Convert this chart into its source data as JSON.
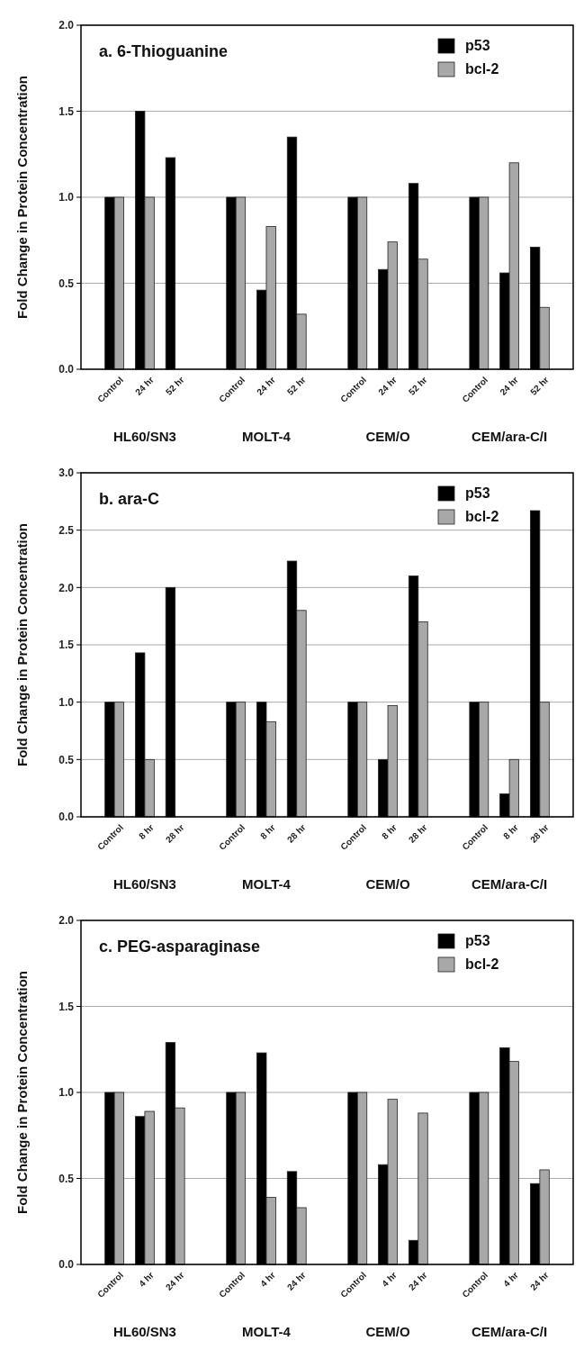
{
  "chart_data": [
    {
      "type": "bar",
      "title": "a. 6-Thioguanine",
      "ylabel": "Fold Change in Protein Concentration",
      "categories": [
        "Control",
        "24 hr",
        "52 hr",
        "Control",
        "24 hr",
        "52 hr",
        "Control",
        "24 hr",
        "52 hr",
        "Control",
        "24 hr",
        "52 hr"
      ],
      "annotations": [
        "HL60/SN3",
        "MOLT-4",
        "CEM/O",
        "CEM/ara-C/I"
      ],
      "series": [
        {
          "name": "p53",
          "color": "#000000",
          "values": [
            1,
            1.5,
            1.23,
            1,
            0.46,
            1.35,
            1,
            0.58,
            1.08,
            1,
            0.56,
            0.71
          ]
        },
        {
          "name": "bcl-2",
          "color": "#a8a8a8",
          "values": [
            1,
            1.0,
            null,
            1,
            0.83,
            0.32,
            1,
            0.74,
            0.64,
            1,
            1.2,
            0.36
          ]
        }
      ],
      "ylim": [
        0,
        2
      ],
      "yticks": [
        {
          "value": 0,
          "label": "0.0"
        },
        {
          "value": 0.5,
          "label": "0.5"
        },
        {
          "value": 1,
          "label": "1.0"
        },
        {
          "value": 1.5,
          "label": "1.5"
        },
        {
          "value": 2,
          "label": "2.0"
        }
      ],
      "grid": "y",
      "legend": "top right"
    },
    {
      "type": "bar",
      "title": "b. ara-C",
      "ylabel": "Fold Change in Protein Concentration",
      "categories": [
        "Control",
        "8 hr",
        "28 hr",
        "Control",
        "8 hr",
        "28 hr",
        "Control",
        "8 hr",
        "28 hr",
        "Control",
        "8 hr",
        "28 hr"
      ],
      "annotations": [
        "HL60/SN3",
        "MOLT-4",
        "CEM/O",
        "CEM/ara-C/I"
      ],
      "series": [
        {
          "name": "p53",
          "color": "#000000",
          "values": [
            1,
            1.43,
            2.0,
            1,
            1.0,
            2.23,
            1,
            0.5,
            2.1,
            1,
            0.2,
            2.67
          ]
        },
        {
          "name": "bcl-2",
          "color": "#a8a8a8",
          "values": [
            1,
            0.5,
            null,
            1,
            0.83,
            1.8,
            1,
            0.97,
            1.7,
            1,
            0.5,
            1.0
          ]
        }
      ],
      "ylim": [
        0,
        3
      ],
      "yticks": [
        {
          "value": 0,
          "label": "0.0"
        },
        {
          "value": 0.5,
          "label": "0.5"
        },
        {
          "value": 1,
          "label": "1.0"
        },
        {
          "value": 1.5,
          "label": "1.5"
        },
        {
          "value": 2,
          "label": "2.0"
        },
        {
          "value": 2.5,
          "label": "2.5"
        },
        {
          "value": 3,
          "label": "3.0"
        }
      ],
      "grid": "y",
      "legend": "top right"
    },
    {
      "type": "bar",
      "title": "c. PEG-asparaginase",
      "ylabel": "Fold Change in Protein Concentration",
      "categories": [
        "Control",
        "4 hr",
        "24 hr",
        "Control",
        "4 hr",
        "24 hr",
        "Control",
        "4 hr",
        "24 hr",
        "Control",
        "4 hr",
        "24 hr"
      ],
      "annotations": [
        "HL60/SN3",
        "MOLT-4",
        "CEM/O",
        "CEM/ara-C/I"
      ],
      "series": [
        {
          "name": "p53",
          "color": "#000000",
          "values": [
            1,
            0.86,
            1.29,
            1,
            1.23,
            0.54,
            1,
            0.58,
            0.14,
            1,
            1.26,
            0.47
          ]
        },
        {
          "name": "bcl-2",
          "color": "#a8a8a8",
          "values": [
            1,
            0.89,
            0.91,
            1,
            0.39,
            0.33,
            1,
            0.96,
            0.88,
            1,
            1.18,
            0.55
          ]
        }
      ],
      "ylim": [
        0,
        2
      ],
      "yticks": [
        {
          "value": 0,
          "label": "0.0"
        },
        {
          "value": 0.5,
          "label": "0.5"
        },
        {
          "value": 1,
          "label": "1.0"
        },
        {
          "value": 1.5,
          "label": "1.5"
        },
        {
          "value": 2,
          "label": "2.0"
        }
      ],
      "grid": "y",
      "legend": "top right"
    }
  ]
}
